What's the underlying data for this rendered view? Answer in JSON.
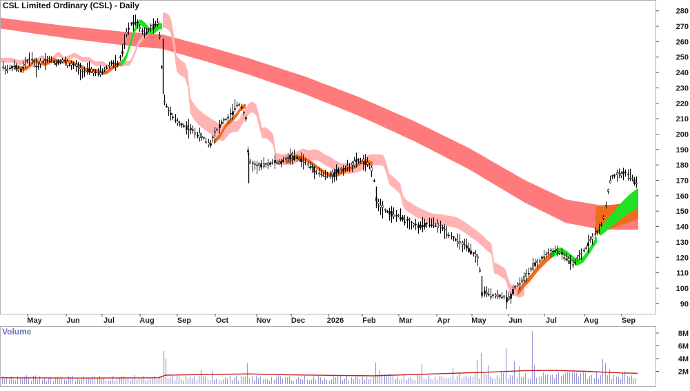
{
  "title": "CSL Limited Ordinary (CSL) - Daily",
  "colors": {
    "background": "#ffffff",
    "border": "#b0b0b0",
    "candle": "#000000",
    "ma_band_long": "#ff7b7b",
    "ma_band_medium": "#ffb3b3",
    "ma_band_short_down": "#f26b1d",
    "ma_band_short_up": "#22e022",
    "volume_bar": "#9898d8",
    "volume_avg": "#c41e1e",
    "volume_label": "#6a6fc0"
  },
  "chart_data": [
    {
      "type": "candlestick",
      "title": "CSL Limited Ordinary (CSL) - Daily",
      "x_labels": [
        "May",
        "Jun",
        "Jul",
        "Aug",
        "Sep",
        "Oct",
        "Nov",
        "Dec",
        "2026",
        "Feb",
        "Mar",
        "Apr",
        "May",
        "Jun",
        "Jul",
        "Aug",
        "Sep"
      ],
      "y_ticks": [
        90,
        100,
        110,
        120,
        130,
        140,
        150,
        160,
        170,
        180,
        190,
        200,
        210,
        220,
        230,
        240,
        250,
        260,
        270,
        280
      ],
      "ylim": [
        84,
        284
      ],
      "grid": false,
      "price_path": [
        [
          0,
          245
        ],
        [
          10,
          242
        ],
        [
          20,
          244
        ],
        [
          30,
          241
        ],
        [
          38,
          247
        ],
        [
          45,
          250
        ],
        [
          52,
          243
        ],
        [
          60,
          247
        ],
        [
          70,
          249
        ],
        [
          80,
          246
        ],
        [
          90,
          248
        ],
        [
          100,
          245
        ],
        [
          110,
          244
        ],
        [
          120,
          240
        ],
        [
          130,
          242
        ],
        [
          140,
          239
        ],
        [
          150,
          241
        ],
        [
          160,
          246
        ],
        [
          170,
          245
        ],
        [
          176,
          252
        ],
        [
          183,
          265
        ],
        [
          190,
          272
        ],
        [
          197,
          274
        ],
        [
          204,
          268
        ],
        [
          210,
          265
        ],
        [
          216,
          268
        ],
        [
          222,
          270
        ],
        [
          228,
          272
        ],
        [
          233,
          260
        ],
        [
          236,
          225
        ],
        [
          241,
          218
        ],
        [
          248,
          212
        ],
        [
          256,
          208
        ],
        [
          264,
          206
        ],
        [
          272,
          204
        ],
        [
          280,
          202
        ],
        [
          288,
          199
        ],
        [
          296,
          197
        ],
        [
          304,
          193
        ],
        [
          310,
          200
        ],
        [
          316,
          204
        ],
        [
          322,
          208
        ],
        [
          330,
          210
        ],
        [
          338,
          215
        ],
        [
          344,
          220
        ],
        [
          350,
          218
        ],
        [
          356,
          210
        ],
        [
          360,
          183
        ],
        [
          366,
          180
        ],
        [
          374,
          179
        ],
        [
          382,
          180
        ],
        [
          390,
          181
        ],
        [
          398,
          182
        ],
        [
          406,
          181
        ],
        [
          414,
          184
        ],
        [
          422,
          186
        ],
        [
          430,
          184
        ],
        [
          438,
          183
        ],
        [
          446,
          180
        ],
        [
          454,
          177
        ],
        [
          462,
          175
        ],
        [
          470,
          173
        ],
        [
          478,
          173
        ],
        [
          486,
          175
        ],
        [
          494,
          177
        ],
        [
          502,
          178
        ],
        [
          510,
          180
        ],
        [
          518,
          183
        ],
        [
          526,
          182
        ],
        [
          534,
          180
        ],
        [
          540,
          176
        ],
        [
          545,
          157
        ],
        [
          552,
          153
        ],
        [
          560,
          150
        ],
        [
          568,
          148
        ],
        [
          576,
          147
        ],
        [
          584,
          145
        ],
        [
          592,
          143
        ],
        [
          600,
          141
        ],
        [
          608,
          140
        ],
        [
          616,
          141
        ],
        [
          624,
          142
        ],
        [
          632,
          141
        ],
        [
          640,
          139
        ],
        [
          648,
          136
        ],
        [
          656,
          133
        ],
        [
          664,
          130
        ],
        [
          672,
          128
        ],
        [
          680,
          125
        ],
        [
          688,
          121
        ],
        [
          694,
          118
        ],
        [
          698,
          97
        ],
        [
          704,
          97
        ],
        [
          712,
          96
        ],
        [
          720,
          95
        ],
        [
          728,
          95
        ],
        [
          734,
          93
        ],
        [
          740,
          95
        ],
        [
          746,
          101
        ],
        [
          752,
          103
        ],
        [
          758,
          106
        ],
        [
          764,
          109
        ],
        [
          770,
          113
        ],
        [
          776,
          116
        ],
        [
          782,
          118
        ],
        [
          788,
          121
        ],
        [
          794,
          123
        ],
        [
          800,
          124
        ],
        [
          806,
          125
        ],
        [
          812,
          122
        ],
        [
          818,
          120
        ],
        [
          824,
          118
        ],
        [
          830,
          115
        ],
        [
          836,
          119
        ],
        [
          842,
          122
        ],
        [
          848,
          126
        ],
        [
          854,
          131
        ],
        [
          860,
          134
        ],
        [
          866,
          137
        ],
        [
          870,
          139
        ],
        [
          874,
          145
        ],
        [
          878,
          155
        ],
        [
          882,
          167
        ],
        [
          886,
          172
        ],
        [
          892,
          173
        ],
        [
          900,
          174
        ],
        [
          906,
          175
        ],
        [
          912,
          173
        ],
        [
          918,
          170
        ],
        [
          922,
          168
        ],
        [
          924,
          172
        ]
      ],
      "annotations": [
        "Long-term moving average band (red)",
        "Medium-term moving average band (pink)",
        "Short-term moving average band (orange when falling, green when rising)"
      ]
    },
    {
      "type": "bar",
      "title": "Volume",
      "y_ticks": [
        "2M",
        "4M",
        "6M",
        "8M"
      ],
      "y_tick_values": [
        2,
        4,
        6,
        8
      ],
      "ylim": [
        0,
        9
      ],
      "baseline_volume_millions": 1.0,
      "average_line": "red 50-day moving average of volume",
      "spikes": [
        [
          236,
          5.2
        ],
        [
          240,
          4.0
        ],
        [
          290,
          2.2
        ],
        [
          306,
          2.1
        ],
        [
          358,
          3.3
        ],
        [
          363,
          2.0
        ],
        [
          545,
          3.4
        ],
        [
          550,
          2.2
        ],
        [
          612,
          3.1
        ],
        [
          655,
          2.5
        ],
        [
          690,
          3.8
        ],
        [
          698,
          4.9
        ],
        [
          706,
          3.0
        ],
        [
          734,
          5.6
        ],
        [
          746,
          3.6
        ],
        [
          752,
          2.8
        ],
        [
          770,
          8.3
        ],
        [
          775,
          3.0
        ],
        [
          873,
          3.9
        ],
        [
          878,
          3.3
        ],
        [
          884,
          2.3
        ]
      ]
    }
  ]
}
